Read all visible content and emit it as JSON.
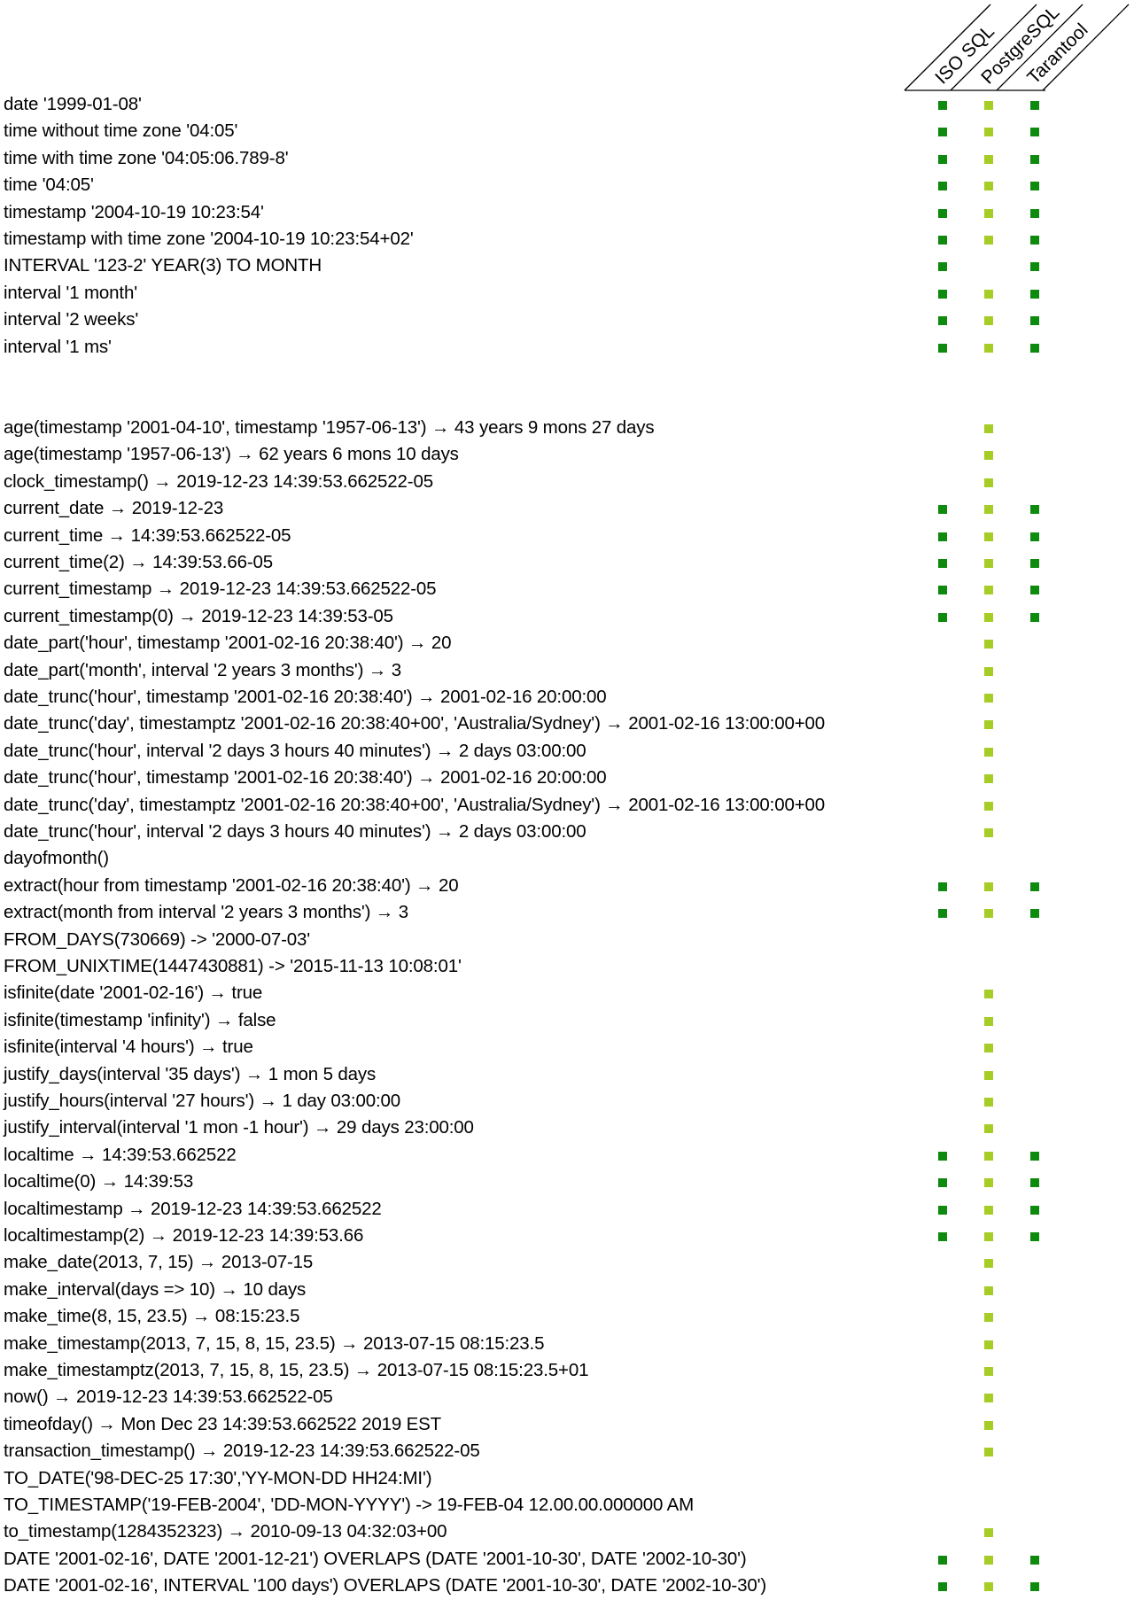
{
  "palette": {
    "iso": "#0e8a0e",
    "postgres": "#a5cd25",
    "tarantool": "#0e8a0e"
  },
  "columns": [
    {
      "label": "ISO SQL",
      "color": "#0e8a0e"
    },
    {
      "label": "PostgreSQL",
      "color": "#a5cd25"
    },
    {
      "label": "Tarantool",
      "color": "#0e8a0e"
    }
  ],
  "sections": [
    {
      "rows": [
        {
          "text": "date '1999-01-08'",
          "support": [
            1,
            1,
            1
          ]
        },
        {
          "text": "time without time zone '04:05'",
          "support": [
            1,
            1,
            1
          ]
        },
        {
          "text": "time with time zone '04:05:06.789-8'",
          "support": [
            1,
            1,
            1
          ]
        },
        {
          "text": "time '04:05'",
          "support": [
            1,
            1,
            1
          ]
        },
        {
          "text": "timestamp '2004-10-19 10:23:54'",
          "support": [
            1,
            1,
            1
          ]
        },
        {
          "text": "timestamp with time zone '2004-10-19 10:23:54+02'",
          "support": [
            1,
            1,
            1
          ]
        },
        {
          "text": "INTERVAL '123-2' YEAR(3) TO MONTH",
          "support": [
            1,
            0,
            1
          ]
        },
        {
          "text": "interval '1 month'",
          "support": [
            1,
            1,
            1
          ]
        },
        {
          "text": "interval '2 weeks'",
          "support": [
            1,
            1,
            1
          ]
        },
        {
          "text": "interval '1 ms'",
          "support": [
            1,
            1,
            1
          ]
        }
      ]
    },
    {
      "rows": [
        {
          "text": "age(timestamp '2001-04-10', timestamp '1957-06-13') → 43 years 9 mons 27 days",
          "support": [
            0,
            1,
            0
          ]
        },
        {
          "text": "age(timestamp '1957-06-13') → 62 years 6 mons 10 days",
          "support": [
            0,
            1,
            0
          ]
        },
        {
          "text": "clock_timestamp() → 2019-12-23 14:39:53.662522-05",
          "support": [
            0,
            1,
            0
          ]
        },
        {
          "text": "current_date → 2019-12-23",
          "support": [
            1,
            1,
            1
          ]
        },
        {
          "text": "current_time → 14:39:53.662522-05",
          "support": [
            1,
            1,
            1
          ]
        },
        {
          "text": "current_time(2) → 14:39:53.66-05",
          "support": [
            1,
            1,
            1
          ]
        },
        {
          "text": "current_timestamp → 2019-12-23 14:39:53.662522-05",
          "support": [
            1,
            1,
            1
          ]
        },
        {
          "text": "current_timestamp(0) → 2019-12-23 14:39:53-05",
          "support": [
            1,
            1,
            1
          ]
        },
        {
          "text": "date_part('hour', timestamp '2001-02-16 20:38:40') → 20",
          "support": [
            0,
            1,
            0
          ]
        },
        {
          "text": "date_part('month', interval '2 years 3 months') → 3",
          "support": [
            0,
            1,
            0
          ]
        },
        {
          "text": "date_trunc('hour', timestamp '2001-02-16 20:38:40') → 2001-02-16 20:00:00",
          "support": [
            0,
            1,
            0
          ]
        },
        {
          "text": "date_trunc('day', timestamptz '2001-02-16 20:38:40+00', 'Australia/Sydney') → 2001-02-16 13:00:00+00",
          "support": [
            0,
            1,
            0
          ]
        },
        {
          "text": "date_trunc('hour', interval '2 days 3 hours 40 minutes') → 2 days 03:00:00",
          "support": [
            0,
            1,
            0
          ]
        },
        {
          "text": "date_trunc('hour', timestamp '2001-02-16 20:38:40') → 2001-02-16 20:00:00",
          "support": [
            0,
            1,
            0
          ]
        },
        {
          "text": "date_trunc('day', timestamptz '2001-02-16 20:38:40+00', 'Australia/Sydney') → 2001-02-16 13:00:00+00",
          "support": [
            0,
            1,
            0
          ]
        },
        {
          "text": "date_trunc('hour', interval '2 days 3 hours 40 minutes') → 2 days 03:00:00",
          "support": [
            0,
            1,
            0
          ]
        },
        {
          "text": "dayofmonth()",
          "support": [
            0,
            0,
            0
          ]
        },
        {
          "text": "extract(hour from timestamp '2001-02-16 20:38:40') → 20",
          "support": [
            1,
            1,
            1
          ]
        },
        {
          "text": "extract(month from interval '2 years 3 months') → 3",
          "support": [
            1,
            1,
            1
          ]
        },
        {
          "text": "FROM_DAYS(730669) -> '2000-07-03'",
          "support": [
            0,
            0,
            0
          ]
        },
        {
          "text": "FROM_UNIXTIME(1447430881) -> '2015-11-13 10:08:01'",
          "support": [
            0,
            0,
            0
          ]
        },
        {
          "text": "isfinite(date '2001-02-16') → true",
          "support": [
            0,
            1,
            0
          ]
        },
        {
          "text": "isfinite(timestamp 'infinity') → false",
          "support": [
            0,
            1,
            0
          ]
        },
        {
          "text": "isfinite(interval '4 hours') → true",
          "support": [
            0,
            1,
            0
          ]
        },
        {
          "text": "justify_days(interval '35 days') → 1 mon 5 days",
          "support": [
            0,
            1,
            0
          ]
        },
        {
          "text": "justify_hours(interval '27 hours') → 1 day 03:00:00",
          "support": [
            0,
            1,
            0
          ]
        },
        {
          "text": "justify_interval(interval '1 mon -1 hour') → 29 days 23:00:00",
          "support": [
            0,
            1,
            0
          ]
        },
        {
          "text": "localtime → 14:39:53.662522",
          "support": [
            1,
            1,
            1
          ]
        },
        {
          "text": "localtime(0) → 14:39:53",
          "support": [
            1,
            1,
            1
          ]
        },
        {
          "text": "localtimestamp → 2019-12-23 14:39:53.662522",
          "support": [
            1,
            1,
            1
          ]
        },
        {
          "text": "localtimestamp(2) → 2019-12-23 14:39:53.66",
          "support": [
            1,
            1,
            1
          ]
        },
        {
          "text": "make_date(2013, 7, 15) → 2013-07-15",
          "support": [
            0,
            1,
            0
          ]
        },
        {
          "text": "make_interval(days => 10) → 10 days",
          "support": [
            0,
            1,
            0
          ]
        },
        {
          "text": "make_time(8, 15, 23.5) → 08:15:23.5",
          "support": [
            0,
            1,
            0
          ]
        },
        {
          "text": "make_timestamp(2013, 7, 15, 8, 15, 23.5) → 2013-07-15 08:15:23.5",
          "support": [
            0,
            1,
            0
          ]
        },
        {
          "text": "make_timestamptz(2013, 7, 15, 8, 15, 23.5) → 2013-07-15 08:15:23.5+01",
          "support": [
            0,
            1,
            0
          ]
        },
        {
          "text": "now() → 2019-12-23 14:39:53.662522-05",
          "support": [
            0,
            1,
            0
          ]
        },
        {
          "text": "timeofday() → Mon Dec 23 14:39:53.662522 2019 EST",
          "support": [
            0,
            1,
            0
          ]
        },
        {
          "text": "transaction_timestamp() → 2019-12-23 14:39:53.662522-05",
          "support": [
            0,
            1,
            0
          ]
        },
        {
          "text": "TO_DATE('98-DEC-25 17:30','YY-MON-DD HH24:MI')",
          "support": [
            0,
            0,
            0
          ]
        },
        {
          "text": "TO_TIMESTAMP('19-FEB-2004', 'DD-MON-YYYY') -> 19-FEB-04 12.00.00.000000 AM",
          "support": [
            0,
            0,
            0
          ]
        },
        {
          "text": "to_timestamp(1284352323) → 2010-09-13 04:32:03+00",
          "support": [
            0,
            1,
            0
          ]
        },
        {
          "text": "DATE '2001-02-16', DATE '2001-12-21') OVERLAPS (DATE '2001-10-30', DATE '2002-10-30')",
          "support": [
            1,
            1,
            1
          ]
        },
        {
          "text": "DATE '2001-02-16', INTERVAL '100 days') OVERLAPS (DATE '2001-10-30', DATE '2002-10-30')",
          "support": [
            1,
            1,
            1
          ]
        }
      ]
    }
  ]
}
